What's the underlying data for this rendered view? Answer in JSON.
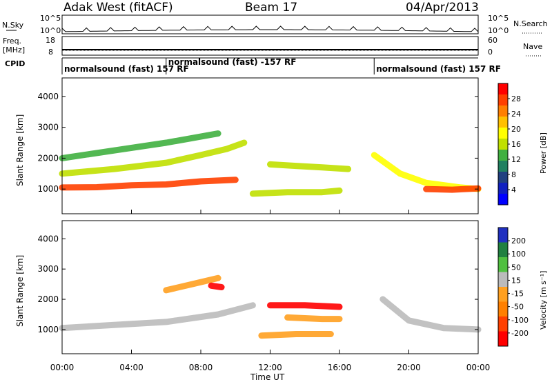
{
  "header": {
    "left_title": "Adak West (fitACF)",
    "center_title": "Beam 17",
    "right_title": "04/Apr/2013"
  },
  "strips": {
    "nsky_label": "N.Sky",
    "nsky_ticks": [
      "10^5",
      "10^0"
    ],
    "nsearch_label": "N.Search",
    "nsearch_ticks": [
      "10^5",
      "10^0"
    ],
    "freq_label_line1": "Freq.",
    "freq_label_line2": "[MHz]",
    "freq_ticks": [
      "18",
      "8"
    ],
    "nave_label": "Nave",
    "nave_ticks": [
      "60",
      "0"
    ],
    "cpid_label": "CPID",
    "cpid_segments": [
      {
        "text": "normalsound (fast) 157 RF",
        "start_hour": 0
      },
      {
        "text": "normalsound (fast) -157 RF",
        "start_hour": 6
      },
      {
        "text": "normalsound (fast) 157 RF",
        "start_hour": 18
      }
    ]
  },
  "panels": {
    "power_ylabel": "Slant Range [km]",
    "velocity_ylabel": "Slant Range [km]",
    "xlabel": "Time UT"
  },
  "colorbars": {
    "power": {
      "label": "Power [dB]",
      "ticks": [
        "28",
        "24",
        "20",
        "16",
        "12",
        "8",
        "4"
      ],
      "colors": [
        "#ff0000",
        "#ff4000",
        "#ff7f00",
        "#ffc000",
        "#ffff00",
        "#c0e000",
        "#40b040",
        "#208060",
        "#204080",
        "#1020c0",
        "#0000ff"
      ]
    },
    "velocity": {
      "label": "Velocity [m s⁻¹]",
      "ticks": [
        "200",
        "100",
        "50",
        "15",
        "-15",
        "-50",
        "-100",
        "-200"
      ],
      "colors": [
        "#2030c0",
        "#208040",
        "#50c040",
        "#bbbbbb",
        "#ffa020",
        "#ff8000",
        "#ff4000",
        "#ff0000"
      ]
    }
  },
  "chart_data": {
    "type": "heatmap",
    "x_ticks": [
      "00:00",
      "04:00",
      "08:00",
      "12:00",
      "16:00",
      "20:00",
      "00:00"
    ],
    "x_range_hours": [
      0,
      24
    ],
    "y_ticks": [
      "4000",
      "3000",
      "2000",
      "1000"
    ],
    "ylim": [
      200,
      4600
    ],
    "power_bands": [
      {
        "x": [
          0,
          2,
          4,
          6,
          8,
          10
        ],
        "y": [
          1050,
          1060,
          1120,
          1150,
          1250,
          1300
        ],
        "value_db": 26
      },
      {
        "x": [
          0,
          3,
          6,
          8,
          9.5,
          10.5
        ],
        "y": [
          1500,
          1650,
          1850,
          2100,
          2300,
          2500
        ],
        "value_db": 16
      },
      {
        "x": [
          0,
          3,
          6,
          9
        ],
        "y": [
          2000,
          2250,
          2500,
          2800
        ],
        "value_db": 12
      },
      {
        "x": [
          12,
          13.5,
          15,
          16.5
        ],
        "y": [
          1800,
          1750,
          1700,
          1650
        ],
        "value_db": 16
      },
      {
        "x": [
          11,
          13,
          15,
          16
        ],
        "y": [
          850,
          900,
          900,
          950
        ],
        "value_db": 14
      },
      {
        "x": [
          18,
          19.5,
          21,
          23,
          24
        ],
        "y": [
          2100,
          1500,
          1200,
          1050,
          1000
        ],
        "value_db": 18
      },
      {
        "x": [
          21,
          22.5,
          24
        ],
        "y": [
          1000,
          980,
          1020
        ],
        "value_db": 26
      }
    ],
    "velocity_bands": [
      {
        "x": [
          0,
          3,
          6,
          9,
          11
        ],
        "y": [
          1050,
          1150,
          1250,
          1500,
          1800
        ],
        "value_ms": 0
      },
      {
        "x": [
          6,
          7.5,
          9
        ],
        "y": [
          2300,
          2500,
          2700
        ],
        "value_ms": -50
      },
      {
        "x": [
          8.6,
          9.2
        ],
        "y": [
          2450,
          2400
        ],
        "value_ms": -200
      },
      {
        "x": [
          12,
          14,
          16
        ],
        "y": [
          1800,
          1800,
          1750
        ],
        "value_ms": -200
      },
      {
        "x": [
          13,
          15,
          16
        ],
        "y": [
          1400,
          1350,
          1350
        ],
        "value_ms": -50
      },
      {
        "x": [
          11.5,
          13.5,
          15.5
        ],
        "y": [
          800,
          850,
          850
        ],
        "value_ms": -50
      },
      {
        "x": [
          18.5,
          20,
          22,
          24
        ],
        "y": [
          2000,
          1300,
          1050,
          1000
        ],
        "value_ms": 0
      }
    ]
  }
}
